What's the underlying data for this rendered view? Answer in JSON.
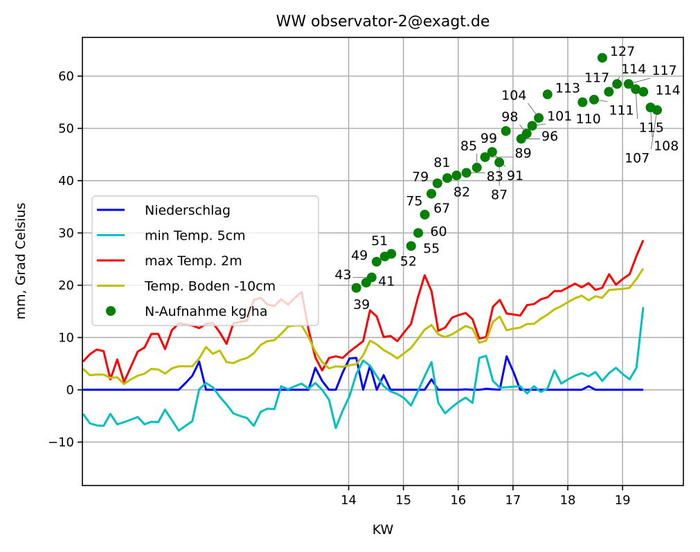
{
  "chart_data": {
    "type": "line",
    "title": "WW observator-2@exagt.de",
    "xlabel": "KW",
    "ylabel": "mm, Grad Celsius",
    "xlim": [
      9.14,
      20.11
    ],
    "ylim": [
      -18.3,
      67.4
    ],
    "xticks": [
      14,
      15,
      16,
      17,
      18,
      19
    ],
    "xtick_labels": [
      "14",
      "15",
      "16",
      "17",
      "18",
      "19"
    ],
    "yticks": [
      -10,
      0,
      10,
      20,
      30,
      40,
      50,
      60
    ],
    "ytick_labels": [
      "−10",
      "0",
      "10",
      "20",
      "30",
      "40",
      "50",
      "60"
    ],
    "grid": true,
    "legend_placement": "center-left",
    "line_x_start": 9.152,
    "line_x_step": 0.1247,
    "series": [
      {
        "name": "Niederschlag",
        "color": "#0000ff",
        "kind": "line",
        "values": [
          0,
          0,
          0,
          0,
          0,
          0,
          0,
          0,
          0,
          0,
          0,
          0,
          0,
          0,
          0,
          1.3,
          2.7,
          5.4,
          0,
          0,
          0,
          0,
          0,
          0,
          0,
          0,
          0,
          0,
          0,
          0,
          0,
          0,
          0,
          0,
          4.2,
          1.7,
          0,
          0,
          3.3,
          6.0,
          6.1,
          0,
          4.6,
          0,
          2.8,
          0,
          0,
          0,
          0,
          0,
          0,
          2.0,
          0,
          0,
          0,
          0,
          0.1,
          0,
          0,
          0.2,
          0.1,
          0,
          6.4,
          3.4,
          0,
          0,
          0,
          0,
          0,
          0,
          0,
          0,
          0,
          0,
          0.7,
          0,
          0,
          0,
          0,
          0,
          0,
          0,
          0
        ]
      },
      {
        "name": "min Temp. 5cm",
        "color": "#00bfbf",
        "kind": "line",
        "values": [
          -4.6,
          -6.4,
          -6.8,
          -6.9,
          -4.6,
          -6.6,
          -6.2,
          -5.7,
          -5.2,
          -6.6,
          -6.1,
          -6.2,
          -3.8,
          -5.8,
          -7.8,
          -6.9,
          -6.0,
          0.1,
          1.3,
          0.5,
          -1.3,
          -2.8,
          -4.5,
          -5.0,
          -5.4,
          -6.9,
          -4.2,
          -3.6,
          -3.7,
          0.7,
          0.1,
          0.7,
          1.2,
          0.2,
          1.3,
          0.0,
          -1.9,
          -7.3,
          -4.0,
          -1.2,
          3.0,
          5.6,
          4.6,
          2.6,
          0.7,
          -0.3,
          -0.8,
          -1.6,
          -3.0,
          -0.3,
          2.6,
          5.3,
          -2.5,
          -4.5,
          -3.3,
          -2.3,
          -1.5,
          -2.5,
          6.1,
          6.5,
          1.7,
          0.4,
          0.5,
          0.6,
          0.7,
          -0.7,
          0.7,
          -0.4,
          0.3,
          3.7,
          1.2,
          2.0,
          2.7,
          3.2,
          2.6,
          3.4,
          1.7,
          3.2,
          4.2,
          3.0,
          2.0,
          4.2,
          15.8
        ]
      },
      {
        "name": "max Temp. 2m",
        "color": "#ff0000",
        "kind": "line",
        "values": [
          5.4,
          6.8,
          7.7,
          7.4,
          2.0,
          5.8,
          1.5,
          4.4,
          7.3,
          8.1,
          10.7,
          10.7,
          7.8,
          11.4,
          12.7,
          12.5,
          12.3,
          11.8,
          12.6,
          12.8,
          11.0,
          8.8,
          12.7,
          13.0,
          13.2,
          17.2,
          17.6,
          16.3,
          16.0,
          17.3,
          16.3,
          17.6,
          18.7,
          11.5,
          6.2,
          3.7,
          6.1,
          6.4,
          6.1,
          7.3,
          8.3,
          9.3,
          15.2,
          14.0,
          10.1,
          10.3,
          9.3,
          11.0,
          12.6,
          17.6,
          21.9,
          18.9,
          11.3,
          11.9,
          13.8,
          14.3,
          14.7,
          13.5,
          9.8,
          10.1,
          15.9,
          17.2,
          14.6,
          14.4,
          14.2,
          16.2,
          16.4,
          17.3,
          17.7,
          18.9,
          18.9,
          19.6,
          20.3,
          19.6,
          20.4,
          19.1,
          19.5,
          22.1,
          20.1,
          21.2,
          22.1,
          25.6,
          28.6
        ]
      },
      {
        "name": "Temp. Boden -10cm",
        "color": "#bfbf00",
        "kind": "line",
        "values": [
          4.0,
          2.8,
          2.9,
          2.9,
          2.3,
          2.4,
          1.1,
          2.0,
          2.7,
          3.1,
          4.0,
          3.9,
          3.1,
          4.1,
          4.5,
          4.5,
          4.5,
          6.0,
          8.2,
          6.9,
          7.5,
          5.3,
          5.1,
          5.7,
          6.1,
          7.0,
          8.6,
          9.3,
          9.5,
          10.7,
          12.1,
          12.3,
          12.3,
          10.1,
          7.3,
          5.3,
          4.1,
          4.5,
          4.4,
          4.7,
          4.9,
          6.6,
          9.4,
          8.7,
          7.6,
          6.9,
          6.0,
          7.0,
          8.0,
          9.7,
          11.5,
          12.4,
          10.6,
          10.1,
          10.6,
          11.4,
          12.2,
          11.7,
          9.0,
          9.4,
          13.0,
          14.0,
          11.4,
          11.7,
          11.9,
          12.6,
          12.6,
          13.6,
          14.4,
          15.4,
          16.0,
          16.8,
          17.5,
          18.0,
          17.1,
          17.9,
          17.6,
          19.1,
          19.2,
          19.3,
          19.5,
          21.2,
          23.2
        ]
      },
      {
        "name": "N-Aufnahme kg/ha",
        "color": "#008000",
        "kind": "scatter",
        "x": [
          14.14,
          14.32,
          14.42,
          14.51,
          14.66,
          14.78,
          15.14,
          15.27,
          15.39,
          15.51,
          15.62,
          15.8,
          15.97,
          16.15,
          16.34,
          16.49,
          16.62,
          16.75,
          16.87,
          17.15,
          17.25,
          17.35,
          17.47,
          17.63,
          18.27,
          18.48,
          18.63,
          18.75,
          18.9,
          19.11,
          19.24,
          19.38,
          19.51,
          19.63
        ],
        "y": [
          19.5,
          20.5,
          21.5,
          24.5,
          25.5,
          26,
          27.5,
          30,
          33.5,
          37.5,
          39.5,
          40.5,
          41,
          41.5,
          42.5,
          44.5,
          45.5,
          43.5,
          49.5,
          48,
          49,
          50.5,
          52,
          56.5,
          55,
          55.5,
          63.5,
          57,
          58.5,
          58.5,
          57.5,
          57,
          54,
          53.5
        ],
        "labels": [
          "39",
          "41",
          "43",
          "49",
          "51",
          "52",
          "55",
          "60",
          "67",
          "75",
          "79",
          "81",
          "82",
          "83",
          "85",
          "89",
          "91",
          "87",
          "99",
          "96",
          "98",
          "101",
          "104",
          "113",
          "110",
          "111",
          "127",
          "114",
          "117",
          "117",
          "115",
          "114",
          "108",
          "107"
        ]
      }
    ]
  }
}
